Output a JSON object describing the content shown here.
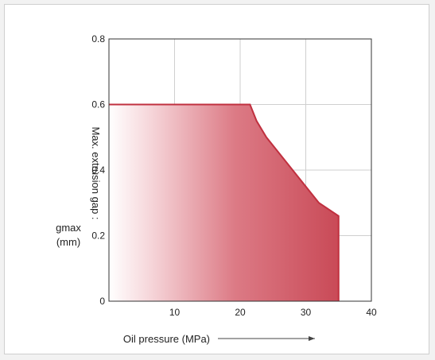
{
  "chart_data": {
    "type": "area",
    "title": "",
    "xlabel": "Oil pressure (MPa)",
    "ylabel_lines": [
      "Max. extrusion gap :",
      "gmax",
      "(mm)"
    ],
    "xlim": [
      0,
      40
    ],
    "ylim": [
      0,
      0.8
    ],
    "x_ticks": [
      10,
      20,
      30,
      40
    ],
    "y_ticks": [
      0,
      0.2,
      0.4,
      0.6,
      0.8
    ],
    "x_tick_labels": [
      "10",
      "20",
      "30",
      "40"
    ],
    "y_tick_labels": [
      "0",
      "0.2",
      "0.4",
      "0.6",
      "0.8"
    ],
    "grid": true,
    "region_boundary": [
      {
        "x": 0,
        "y": 0.6
      },
      {
        "x": 21.5,
        "y": 0.6
      },
      {
        "x": 22.5,
        "y": 0.55
      },
      {
        "x": 24,
        "y": 0.5
      },
      {
        "x": 26,
        "y": 0.45
      },
      {
        "x": 28,
        "y": 0.4
      },
      {
        "x": 30,
        "y": 0.35
      },
      {
        "x": 32,
        "y": 0.3
      },
      {
        "x": 35,
        "y": 0.26
      },
      {
        "x": 35,
        "y": 0
      }
    ],
    "fill_color": "#c94a57",
    "edge_color": "#c0303f"
  }
}
